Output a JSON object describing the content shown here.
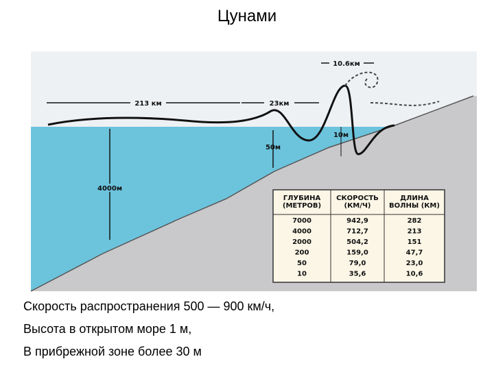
{
  "title": "Цунами",
  "diagram": {
    "labels": {
      "crest_width": "10.6км",
      "wave_length_open": "213 км",
      "wave_length_shelf": "23км",
      "shelf_depth": "50м",
      "coast_depth": "10м",
      "ocean_depth": "4000м"
    },
    "table": {
      "headers": [
        "ГЛУБИНА (МЕТРОВ)",
        "СКОРОСТЬ (КМ/Ч)",
        "ДЛИНА ВОЛНЫ (КМ)"
      ],
      "rows": [
        [
          "7000",
          "942,9",
          "282"
        ],
        [
          "4000",
          "712,7",
          "213"
        ],
        [
          "2000",
          "504,2",
          "151"
        ],
        [
          "200",
          "159,0",
          "47,7"
        ],
        [
          "50",
          "79,0",
          "23,0"
        ],
        [
          "10",
          "35,6",
          "10,6"
        ]
      ]
    }
  },
  "bullets": [
    "Скорость распространения 500 — 900 км/ч,",
    "Высота в открытом море 1 м,",
    "В прибрежной зоне более 30 м"
  ]
}
